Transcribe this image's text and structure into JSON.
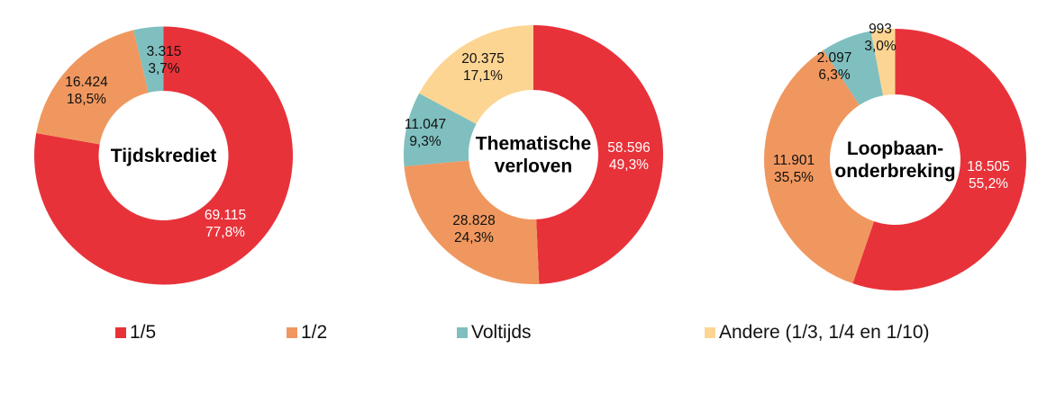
{
  "chart_data": [
    {
      "type": "pie",
      "variant": "donut",
      "title": "Tijdskrediet",
      "title_lines": [
        "Tijdskrediet"
      ],
      "categories": [
        "1/5",
        "1/2",
        "Voltijds"
      ],
      "values": [
        69115,
        16424,
        3315
      ],
      "value_labels": [
        "69.115",
        "16.424",
        "3.315"
      ],
      "percent_labels": [
        "77,8%",
        "18,5%",
        "3,7%"
      ],
      "percents": [
        77.8,
        18.5,
        3.7
      ]
    },
    {
      "type": "pie",
      "variant": "donut",
      "title": "Thematische verloven",
      "title_lines": [
        "Thematische",
        "verloven"
      ],
      "categories": [
        "1/5",
        "1/2",
        "Voltijds",
        "Andere (1/3, 1/4 en 1/10)"
      ],
      "values": [
        58596,
        28828,
        11047,
        20375
      ],
      "value_labels": [
        "58.596",
        "28.828",
        "11.047",
        "20.375"
      ],
      "percent_labels": [
        "49,3%",
        "24,3%",
        "9,3%",
        "17,1%"
      ],
      "percents": [
        49.3,
        24.3,
        9.3,
        17.1
      ]
    },
    {
      "type": "pie",
      "variant": "donut",
      "title": "Loopbaanonderbreking",
      "title_lines": [
        "Loopbaan-",
        "onderbreking"
      ],
      "categories": [
        "1/5",
        "1/2",
        "Voltijds",
        "Andere (1/3, 1/4 en 1/10)"
      ],
      "values": [
        18505,
        11901,
        2097,
        993
      ],
      "value_labels": [
        "18.505",
        "11.901",
        "2.097",
        "993"
      ],
      "percent_labels": [
        "55,2%",
        "35,5%",
        "6,3%",
        "3,0%"
      ],
      "percents": [
        55.2,
        35.5,
        6.3,
        3.0
      ]
    }
  ],
  "legend": {
    "position": "bottom",
    "items": [
      {
        "label": "1/5",
        "color": "#e8323a"
      },
      {
        "label": "1/2",
        "color": "#f0975f"
      },
      {
        "label": "Voltijds",
        "color": "#7fbfbf"
      },
      {
        "label": "Andere (1/3, 1/4 en 1/10)",
        "color": "#fdd592"
      }
    ]
  },
  "colors": {
    "1/5": "#e8323a",
    "1/2": "#f0975f",
    "Voltijds": "#7fbfbf",
    "Andere (1/3, 1/4 en 1/10)": "#fdd592"
  }
}
